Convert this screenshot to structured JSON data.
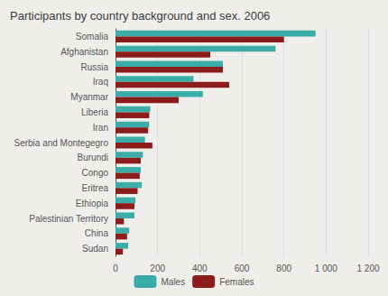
{
  "chart_data": {
    "type": "bar",
    "orientation": "horizontal",
    "title": "Participants by country background and sex. 2006",
    "categories": [
      "Somalia",
      "Afghanistan",
      "Russia",
      "Iraq",
      "Myanmar",
      "Liberia",
      "Iran",
      "Serbia and Montegegro",
      "Burundi",
      "Congo",
      "Eritrea",
      "Ethiopia",
      "Palestinian Territory",
      "China",
      "Sudan"
    ],
    "series": [
      {
        "name": "Males",
        "color": "#3aada8",
        "values": [
          950,
          760,
          510,
          370,
          415,
          165,
          160,
          140,
          130,
          120,
          125,
          95,
          90,
          65,
          60
        ]
      },
      {
        "name": "Females",
        "color": "#8b1c1c",
        "values": [
          800,
          450,
          510,
          540,
          300,
          160,
          155,
          175,
          120,
          115,
          105,
          90,
          40,
          55,
          35
        ]
      }
    ],
    "xlim": [
      0,
      1200
    ],
    "xticks": [
      0,
      200,
      400,
      600,
      800,
      {
        "value": 1000,
        "label": "1 000"
      },
      {
        "value": 1200,
        "label": "1 200"
      }
    ],
    "grid": true,
    "legend": "bottom"
  }
}
